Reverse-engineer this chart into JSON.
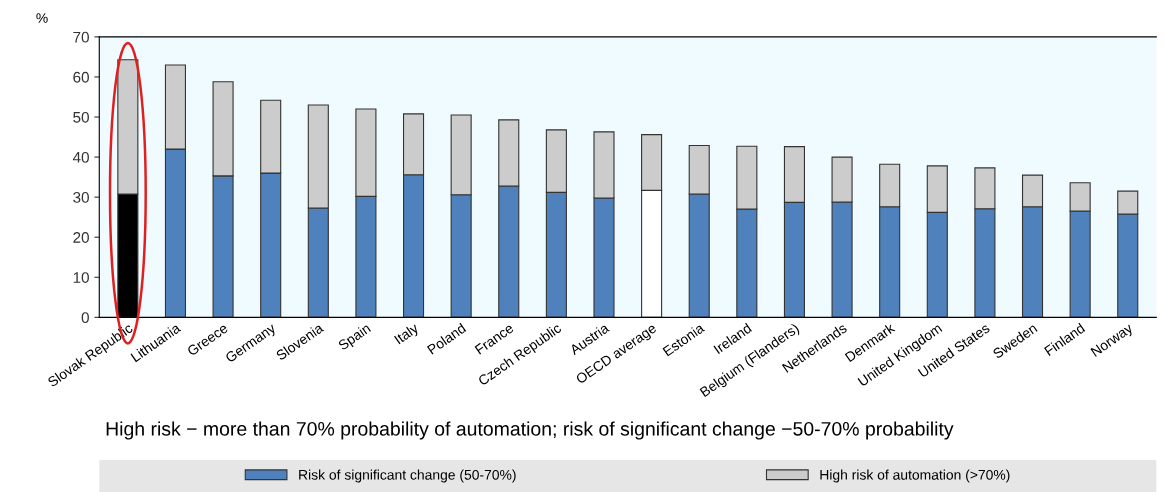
{
  "chart_data": {
    "type": "bar",
    "stacked": true,
    "ylabel": "%",
    "categories": [
      "Slovak Republic",
      "Lithuania",
      "Greece",
      "Germany",
      "Slovenia",
      "Spain",
      "Italy",
      "Poland",
      "France",
      "Czech Republic",
      "Austria",
      "OECD average",
      "Estonia",
      "Ireland",
      "Belgium (Flanders)",
      "Netherlands",
      "Denmark",
      "United Kingdom",
      "United States",
      "Sweden",
      "Finland",
      "Norway"
    ],
    "series": [
      {
        "name": "Risk of significant change (50-70%)",
        "color": "#4f81bd",
        "colors": [
          "#000000",
          "#4f81bd",
          "#4f81bd",
          "#4f81bd",
          "#4f81bd",
          "#4f81bd",
          "#4f81bd",
          "#4f81bd",
          "#4f81bd",
          "#4f81bd",
          "#4f81bd",
          "#ffffff",
          "#4f81bd",
          "#4f81bd",
          "#4f81bd",
          "#4f81bd",
          "#4f81bd",
          "#4f81bd",
          "#4f81bd",
          "#4f81bd",
          "#4f81bd",
          "#4f81bd"
        ],
        "values": [
          30.8,
          42,
          35.3,
          36,
          27.3,
          30.2,
          35.6,
          30.6,
          32.8,
          31.2,
          29.8,
          31.7,
          30.8,
          27,
          28.7,
          28.8,
          27.6,
          26.2,
          27.1,
          27.6,
          26.5,
          25.8
        ]
      },
      {
        "name": "High risk of automation (>70%)",
        "color": "#cccccc",
        "values": [
          33.5,
          21,
          23.5,
          18.2,
          25.7,
          21.8,
          15.2,
          19.9,
          16.5,
          15.6,
          16.5,
          13.9,
          12.1,
          15.7,
          13.9,
          11.2,
          10.6,
          11.6,
          10.2,
          7.9,
          7.1,
          5.7
        ]
      }
    ],
    "ylim": [
      0,
      70
    ],
    "yticks": [
      0,
      10,
      20,
      30,
      40,
      50,
      60,
      70
    ],
    "grid": false,
    "legend": "bottom",
    "annotations": [
      "High risk − more than 70% probability of automation; risk of significant change −50-70% probability"
    ]
  }
}
